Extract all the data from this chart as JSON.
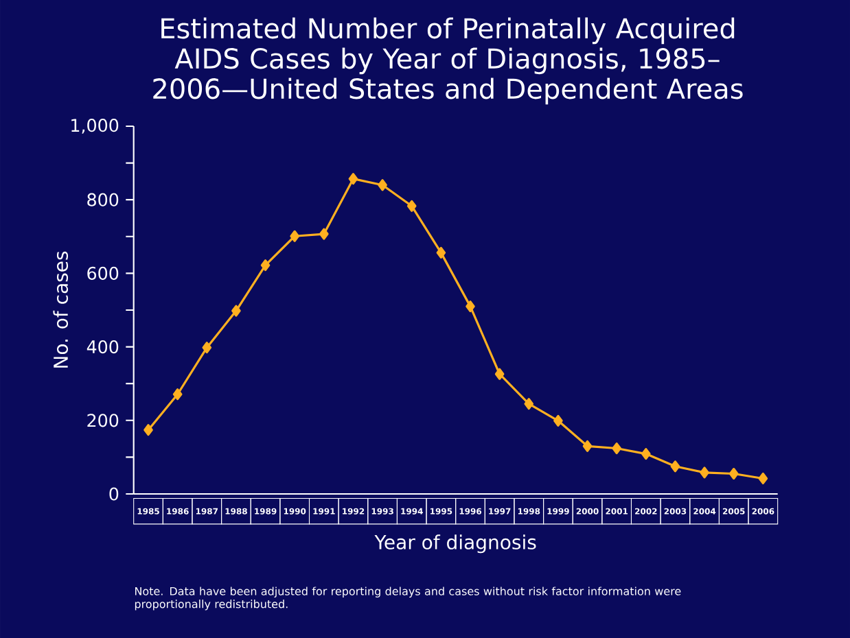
{
  "chart_data": {
    "type": "line",
    "title": "Estimated Number of Perinatally Acquired AIDS Cases by Year of Diagnosis, 1985–2006—United States and Dependent Areas",
    "xlabel": "Year of diagnosis",
    "ylabel": "No. of cases",
    "categories": [
      "1985",
      "1986",
      "1987",
      "1988",
      "1989",
      "1990",
      "1991",
      "1992",
      "1993",
      "1994",
      "1995",
      "1996",
      "1997",
      "1998",
      "1999",
      "2000",
      "2001",
      "2002",
      "2003",
      "2004",
      "2005",
      "2006"
    ],
    "values": [
      174,
      271,
      398,
      498,
      622,
      701,
      707,
      857,
      840,
      783,
      656,
      510,
      326,
      245,
      199,
      130,
      124,
      109,
      75,
      58,
      55,
      42
    ],
    "color": "#ffb020",
    "marker": "diamond",
    "grid": false,
    "ylim": [
      0,
      1000
    ],
    "yticks": [
      0,
      {
        "value": 100,
        "label": null
      },
      200,
      {
        "value": 300,
        "label": null
      },
      400,
      {
        "value": 500,
        "label": null
      },
      600,
      {
        "value": 700,
        "label": null
      },
      800,
      {
        "value": 900,
        "label": null
      },
      {
        "value": 1000,
        "label": "1,000"
      }
    ],
    "annotations": [
      "Note. Data have been adjusted for reporting delays and cases without risk factor information were proportionally redistributed."
    ]
  }
}
